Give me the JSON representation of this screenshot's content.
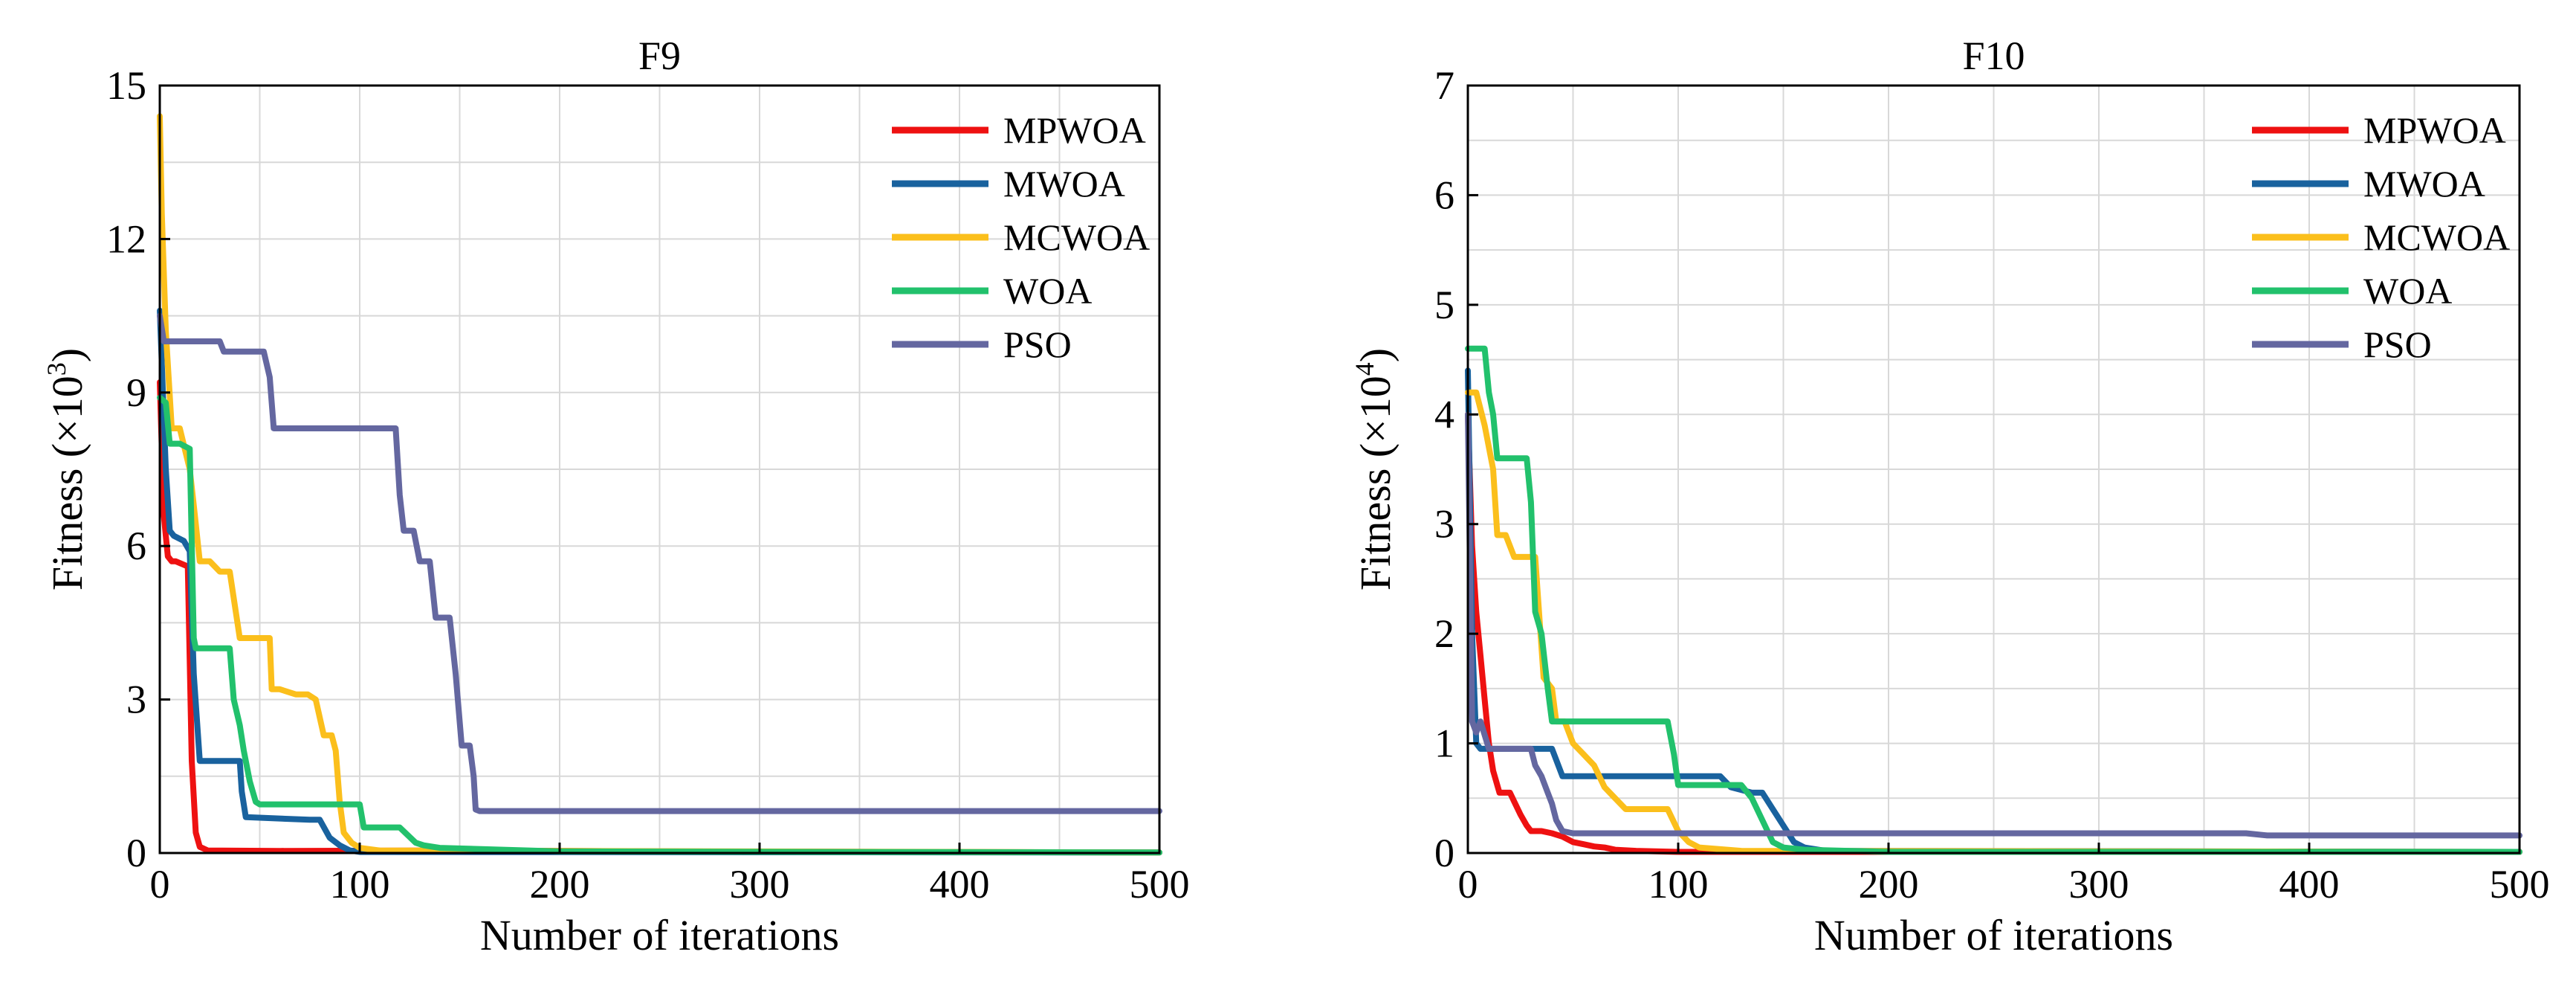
{
  "colors": {
    "MPWOA": "#ee1111",
    "MWOA": "#19629e",
    "MCWOA": "#fbbf1c",
    "WOA": "#22c16c",
    "PSO": "#6467a0",
    "grid": "#d8d8d8",
    "frame": "#000000"
  },
  "chart_data": [
    {
      "type": "line",
      "title": "F9",
      "xlabel": "Number of iterations",
      "ylabel_main": "Fitness (",
      "ylabel_times": "×10",
      "ylabel_exp": "3",
      "ylabel_close": ")",
      "xlim": [
        0,
        500
      ],
      "ylim": [
        0,
        15
      ],
      "xticks": [
        0,
        100,
        200,
        300,
        400,
        500
      ],
      "xtick_labels": [
        "0",
        "100",
        "200",
        "300",
        "400",
        "500"
      ],
      "yticks": [
        0,
        3,
        6,
        9,
        12,
        15
      ],
      "ytick_labels": [
        "0",
        "3",
        "6",
        "9",
        "12",
        "15"
      ],
      "grid": true,
      "legend_position": "top-right",
      "legend": [
        "MPWOA",
        "MWOA",
        "MCWOA",
        "WOA",
        "PSO"
      ],
      "series": [
        {
          "name": "MPWOA",
          "x": [
            0,
            2,
            4,
            6,
            8,
            14,
            16,
            18,
            20,
            24,
            60,
            150,
            250,
            500
          ],
          "y": [
            9.2,
            6.6,
            5.8,
            5.7,
            5.7,
            5.6,
            1.8,
            0.4,
            0.12,
            0.05,
            0.04,
            0.05,
            0.03,
            0.01
          ]
        },
        {
          "name": "MWOA",
          "x": [
            0,
            3,
            5,
            7,
            12,
            15,
            17,
            20,
            40,
            41,
            43,
            75,
            80,
            85,
            90,
            95,
            100,
            500
          ],
          "y": [
            10.6,
            7.5,
            6.3,
            6.2,
            6.1,
            5.9,
            3.5,
            1.8,
            1.8,
            1.2,
            0.7,
            0.65,
            0.65,
            0.3,
            0.15,
            0.05,
            0.02,
            0.01
          ]
        },
        {
          "name": "MCWOA",
          "x": [
            0,
            1,
            3,
            6,
            10,
            15,
            17,
            20,
            25,
            30,
            35,
            40,
            50,
            55,
            56,
            60,
            68,
            74,
            78,
            82,
            86,
            88,
            90,
            92,
            96,
            100,
            110,
            500
          ],
          "y": [
            14.4,
            12.5,
            10.2,
            8.3,
            8.3,
            7.5,
            6.8,
            5.7,
            5.7,
            5.5,
            5.5,
            4.2,
            4.2,
            4.2,
            3.2,
            3.2,
            3.1,
            3.1,
            3.0,
            2.3,
            2.3,
            2.0,
            1.0,
            0.4,
            0.2,
            0.1,
            0.05,
            0.01
          ]
        },
        {
          "name": "WOA",
          "x": [
            0,
            3,
            5,
            8,
            10,
            15,
            17,
            18,
            20,
            35,
            37,
            40,
            42,
            45,
            48,
            50,
            55,
            100,
            102,
            105,
            120,
            128,
            132,
            140,
            200,
            500
          ],
          "y": [
            8.9,
            8.8,
            8.0,
            8.0,
            8.0,
            7.9,
            4.2,
            4.0,
            4.0,
            4.0,
            3.0,
            2.5,
            2.0,
            1.4,
            1.0,
            0.95,
            0.95,
            0.95,
            0.5,
            0.5,
            0.5,
            0.2,
            0.15,
            0.1,
            0.03,
            0.01
          ]
        },
        {
          "name": "PSO",
          "x": [
            0,
            2,
            4,
            30,
            32,
            52,
            55,
            57,
            60,
            118,
            120,
            122,
            124,
            127,
            130,
            135,
            138,
            145,
            148,
            151,
            152,
            155,
            157,
            158,
            160,
            500
          ],
          "y": [
            10.5,
            10.0,
            10.0,
            10.0,
            9.8,
            9.8,
            9.3,
            8.3,
            8.3,
            8.3,
            7.0,
            6.3,
            6.3,
            6.3,
            5.7,
            5.7,
            4.6,
            4.6,
            3.5,
            2.1,
            2.1,
            2.1,
            1.5,
            0.85,
            0.82,
            0.82
          ]
        }
      ]
    },
    {
      "type": "line",
      "title": "F10",
      "xlabel": "Number of iterations",
      "ylabel_main": "Fitness (",
      "ylabel_times": "×10",
      "ylabel_exp": "4",
      "ylabel_close": ")",
      "xlim": [
        0,
        500
      ],
      "ylim": [
        0,
        7
      ],
      "xticks": [
        0,
        100,
        200,
        300,
        400,
        500
      ],
      "xtick_labels": [
        "0",
        "100",
        "200",
        "300",
        "400",
        "500"
      ],
      "yticks": [
        0,
        1,
        2,
        3,
        4,
        5,
        6,
        7
      ],
      "ytick_labels": [
        "0",
        "1",
        "2",
        "3",
        "4",
        "5",
        "6",
        "7"
      ],
      "grid": true,
      "legend_position": "top-right",
      "legend": [
        "MPWOA",
        "MWOA",
        "MCWOA",
        "WOA",
        "PSO"
      ],
      "series": [
        {
          "name": "MPWOA",
          "x": [
            0,
            2,
            4,
            6,
            8,
            10,
            12,
            15,
            18,
            20,
            25,
            28,
            30,
            35,
            40,
            45,
            50,
            55,
            60,
            65,
            70,
            80,
            100,
            500
          ],
          "y": [
            4.0,
            2.8,
            2.2,
            1.8,
            1.4,
            1.0,
            0.75,
            0.55,
            0.55,
            0.55,
            0.35,
            0.25,
            0.2,
            0.2,
            0.18,
            0.15,
            0.1,
            0.08,
            0.06,
            0.05,
            0.03,
            0.02,
            0.01,
            0.01
          ]
        },
        {
          "name": "MWOA",
          "x": [
            0,
            2,
            4,
            6,
            10,
            30,
            40,
            45,
            70,
            80,
            90,
            100,
            120,
            125,
            135,
            140,
            145,
            150,
            155,
            160,
            170,
            500
          ],
          "y": [
            4.4,
            2.0,
            1.0,
            0.95,
            0.95,
            0.95,
            0.95,
            0.7,
            0.7,
            0.7,
            0.7,
            0.7,
            0.7,
            0.6,
            0.55,
            0.55,
            0.4,
            0.25,
            0.1,
            0.05,
            0.02,
            0.01
          ]
        },
        {
          "name": "MCWOA",
          "x": [
            0,
            4,
            8,
            12,
            14,
            18,
            22,
            26,
            28,
            32,
            36,
            40,
            42,
            46,
            50,
            55,
            60,
            65,
            70,
            75,
            80,
            95,
            100,
            105,
            110,
            130,
            500
          ],
          "y": [
            4.2,
            4.2,
            3.9,
            3.5,
            2.9,
            2.9,
            2.7,
            2.7,
            2.7,
            2.7,
            1.6,
            1.5,
            1.2,
            1.2,
            1.0,
            0.9,
            0.8,
            0.6,
            0.5,
            0.4,
            0.4,
            0.4,
            0.2,
            0.1,
            0.05,
            0.02,
            0.01
          ]
        },
        {
          "name": "WOA",
          "x": [
            0,
            5,
            8,
            10,
            12,
            14,
            20,
            25,
            28,
            30,
            32,
            35,
            38,
            40,
            42,
            90,
            95,
            98,
            100,
            120,
            130,
            135,
            140,
            145,
            150,
            160,
            200,
            500
          ],
          "y": [
            4.6,
            4.6,
            4.6,
            4.2,
            4.0,
            3.6,
            3.6,
            3.6,
            3.6,
            3.2,
            2.2,
            2.0,
            1.5,
            1.2,
            1.2,
            1.2,
            1.2,
            0.9,
            0.62,
            0.62,
            0.62,
            0.5,
            0.3,
            0.1,
            0.05,
            0.03,
            0.01,
            0.01
          ]
        },
        {
          "name": "PSO",
          "x": [
            0,
            2,
            4,
            6,
            10,
            30,
            32,
            35,
            38,
            40,
            42,
            45,
            50,
            80,
            100,
            200,
            300,
            370,
            380,
            500
          ],
          "y": [
            4.0,
            1.2,
            1.1,
            1.2,
            0.95,
            0.95,
            0.8,
            0.7,
            0.55,
            0.45,
            0.3,
            0.2,
            0.18,
            0.18,
            0.18,
            0.18,
            0.18,
            0.18,
            0.16,
            0.16
          ]
        }
      ]
    }
  ]
}
